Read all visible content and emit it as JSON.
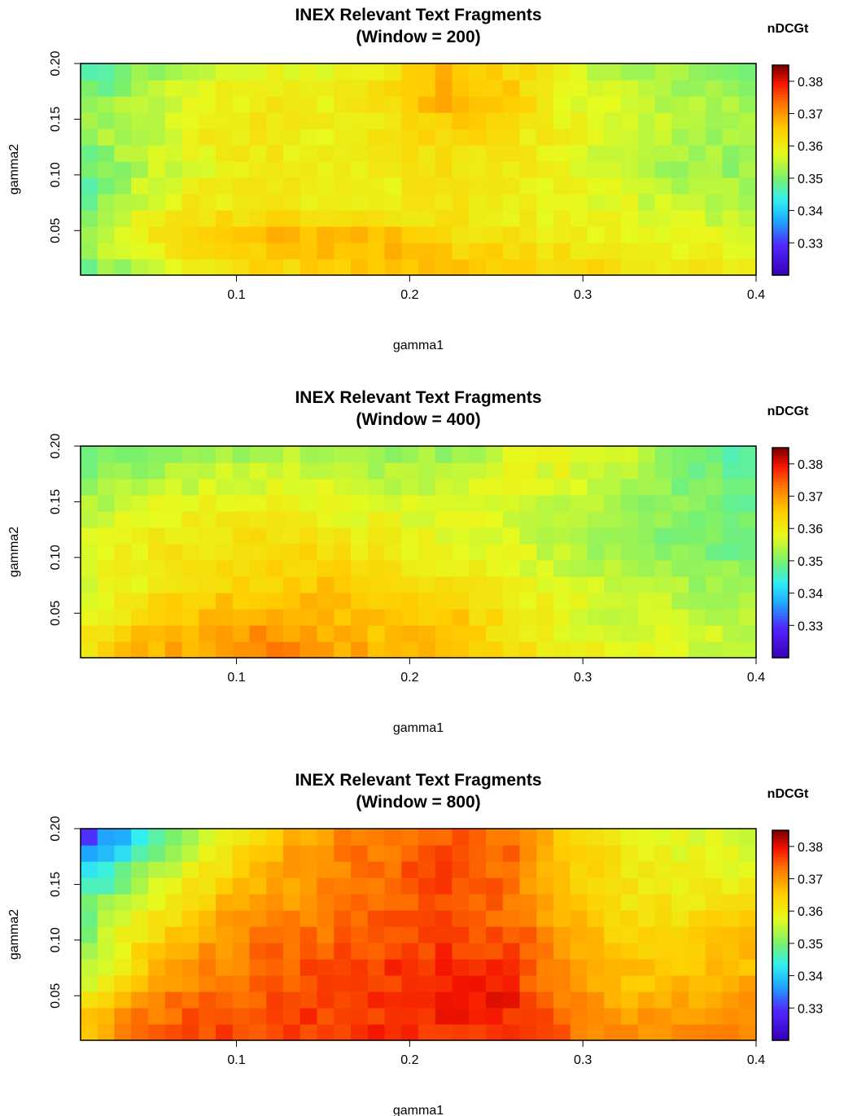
{
  "chart_data": [
    {
      "type": "heatmap",
      "title": "INEX Relevant Text Fragments",
      "subtitle": "(Window = 200)",
      "xlabel": "gamma1",
      "ylabel": "gamma2",
      "legend_title": "nDCGt",
      "xlim": [
        0.01,
        0.4
      ],
      "ylim": [
        0.01,
        0.2
      ],
      "x_ticks": [
        "0.1",
        "0.2",
        "0.3",
        "0.4"
      ],
      "y_ticks": [
        "0.05",
        "0.10",
        "0.15",
        "0.20"
      ],
      "grid": false,
      "legend_position": "right",
      "color_range": [
        0.32,
        0.385
      ],
      "legend_ticks": [
        "0.33",
        "0.34",
        "0.35",
        "0.36",
        "0.37",
        "0.38"
      ],
      "values": [
        [
          0.348,
          0.353,
          0.36,
          0.362,
          0.363,
          0.366,
          0.367,
          0.367,
          0.365,
          0.362,
          0.361,
          0.36
        ],
        [
          0.355,
          0.36,
          0.365,
          0.368,
          0.368,
          0.367,
          0.364,
          0.362,
          0.36,
          0.36,
          0.358,
          0.357
        ],
        [
          0.348,
          0.357,
          0.361,
          0.361,
          0.361,
          0.36,
          0.361,
          0.359,
          0.358,
          0.357,
          0.355,
          0.354
        ],
        [
          0.347,
          0.355,
          0.358,
          0.36,
          0.359,
          0.36,
          0.362,
          0.361,
          0.358,
          0.355,
          0.352,
          0.352
        ],
        [
          0.352,
          0.355,
          0.36,
          0.362,
          0.359,
          0.361,
          0.364,
          0.362,
          0.359,
          0.356,
          0.354,
          0.353
        ],
        [
          0.35,
          0.354,
          0.358,
          0.361,
          0.359,
          0.363,
          0.37,
          0.365,
          0.358,
          0.355,
          0.353,
          0.352
        ],
        [
          0.345,
          0.35,
          0.356,
          0.358,
          0.358,
          0.361,
          0.367,
          0.364,
          0.357,
          0.353,
          0.351,
          0.35
        ]
      ]
    },
    {
      "type": "heatmap",
      "title": "INEX Relevant Text Fragments",
      "subtitle": "(Window = 400)",
      "xlabel": "gamma1",
      "ylabel": "gamma2",
      "legend_title": "nDCGt",
      "xlim": [
        0.01,
        0.4
      ],
      "ylim": [
        0.01,
        0.2
      ],
      "x_ticks": [
        "0.1",
        "0.2",
        "0.3",
        "0.4"
      ],
      "y_ticks": [
        "0.05",
        "0.10",
        "0.15",
        "0.20"
      ],
      "grid": false,
      "legend_position": "right",
      "color_range": [
        0.32,
        0.385
      ],
      "legend_ticks": [
        "0.33",
        "0.34",
        "0.35",
        "0.36",
        "0.37",
        "0.38"
      ],
      "values": [
        [
          0.362,
          0.368,
          0.37,
          0.373,
          0.37,
          0.368,
          0.366,
          0.362,
          0.36,
          0.358,
          0.357,
          0.356
        ],
        [
          0.358,
          0.365,
          0.368,
          0.37,
          0.368,
          0.366,
          0.367,
          0.362,
          0.358,
          0.356,
          0.355,
          0.354
        ],
        [
          0.355,
          0.36,
          0.364,
          0.365,
          0.366,
          0.365,
          0.363,
          0.36,
          0.357,
          0.355,
          0.353,
          0.352
        ],
        [
          0.358,
          0.36,
          0.362,
          0.364,
          0.363,
          0.36,
          0.358,
          0.357,
          0.355,
          0.352,
          0.35,
          0.35
        ],
        [
          0.356,
          0.358,
          0.36,
          0.36,
          0.359,
          0.358,
          0.357,
          0.356,
          0.354,
          0.352,
          0.35,
          0.349
        ],
        [
          0.35,
          0.354,
          0.356,
          0.357,
          0.356,
          0.355,
          0.356,
          0.358,
          0.357,
          0.353,
          0.35,
          0.348
        ],
        [
          0.347,
          0.35,
          0.352,
          0.353,
          0.353,
          0.352,
          0.352,
          0.356,
          0.359,
          0.356,
          0.35,
          0.346
        ]
      ]
    },
    {
      "type": "heatmap",
      "title": "INEX Relevant Text Fragments",
      "subtitle": "(Window = 800)",
      "xlabel": "gamma1",
      "ylabel": "gamma2",
      "legend_title": "nDCGt",
      "xlim": [
        0.01,
        0.4
      ],
      "ylim": [
        0.01,
        0.2
      ],
      "x_ticks": [
        "0.1",
        "0.2",
        "0.3",
        "0.4"
      ],
      "y_ticks": [
        "0.05",
        "0.10",
        "0.15",
        "0.20"
      ],
      "grid": false,
      "legend_position": "right",
      "color_range": [
        0.32,
        0.385
      ],
      "legend_ticks": [
        "0.33",
        "0.34",
        "0.35",
        "0.36",
        "0.37",
        "0.38"
      ],
      "values": [
        [
          0.368,
          0.375,
          0.376,
          0.377,
          0.378,
          0.378,
          0.378,
          0.377,
          0.374,
          0.371,
          0.372,
          0.371
        ],
        [
          0.362,
          0.372,
          0.375,
          0.376,
          0.377,
          0.378,
          0.381,
          0.379,
          0.372,
          0.369,
          0.369,
          0.37
        ],
        [
          0.352,
          0.366,
          0.372,
          0.374,
          0.376,
          0.378,
          0.379,
          0.377,
          0.37,
          0.366,
          0.366,
          0.367
        ],
        [
          0.35,
          0.362,
          0.369,
          0.373,
          0.374,
          0.375,
          0.377,
          0.376,
          0.368,
          0.364,
          0.365,
          0.366
        ],
        [
          0.346,
          0.357,
          0.365,
          0.369,
          0.373,
          0.375,
          0.376,
          0.373,
          0.366,
          0.362,
          0.361,
          0.362
        ],
        [
          0.338,
          0.35,
          0.36,
          0.368,
          0.372,
          0.374,
          0.377,
          0.374,
          0.365,
          0.36,
          0.358,
          0.357
        ],
        [
          0.325,
          0.342,
          0.354,
          0.364,
          0.37,
          0.373,
          0.375,
          0.373,
          0.365,
          0.36,
          0.358,
          0.356
        ]
      ]
    }
  ]
}
